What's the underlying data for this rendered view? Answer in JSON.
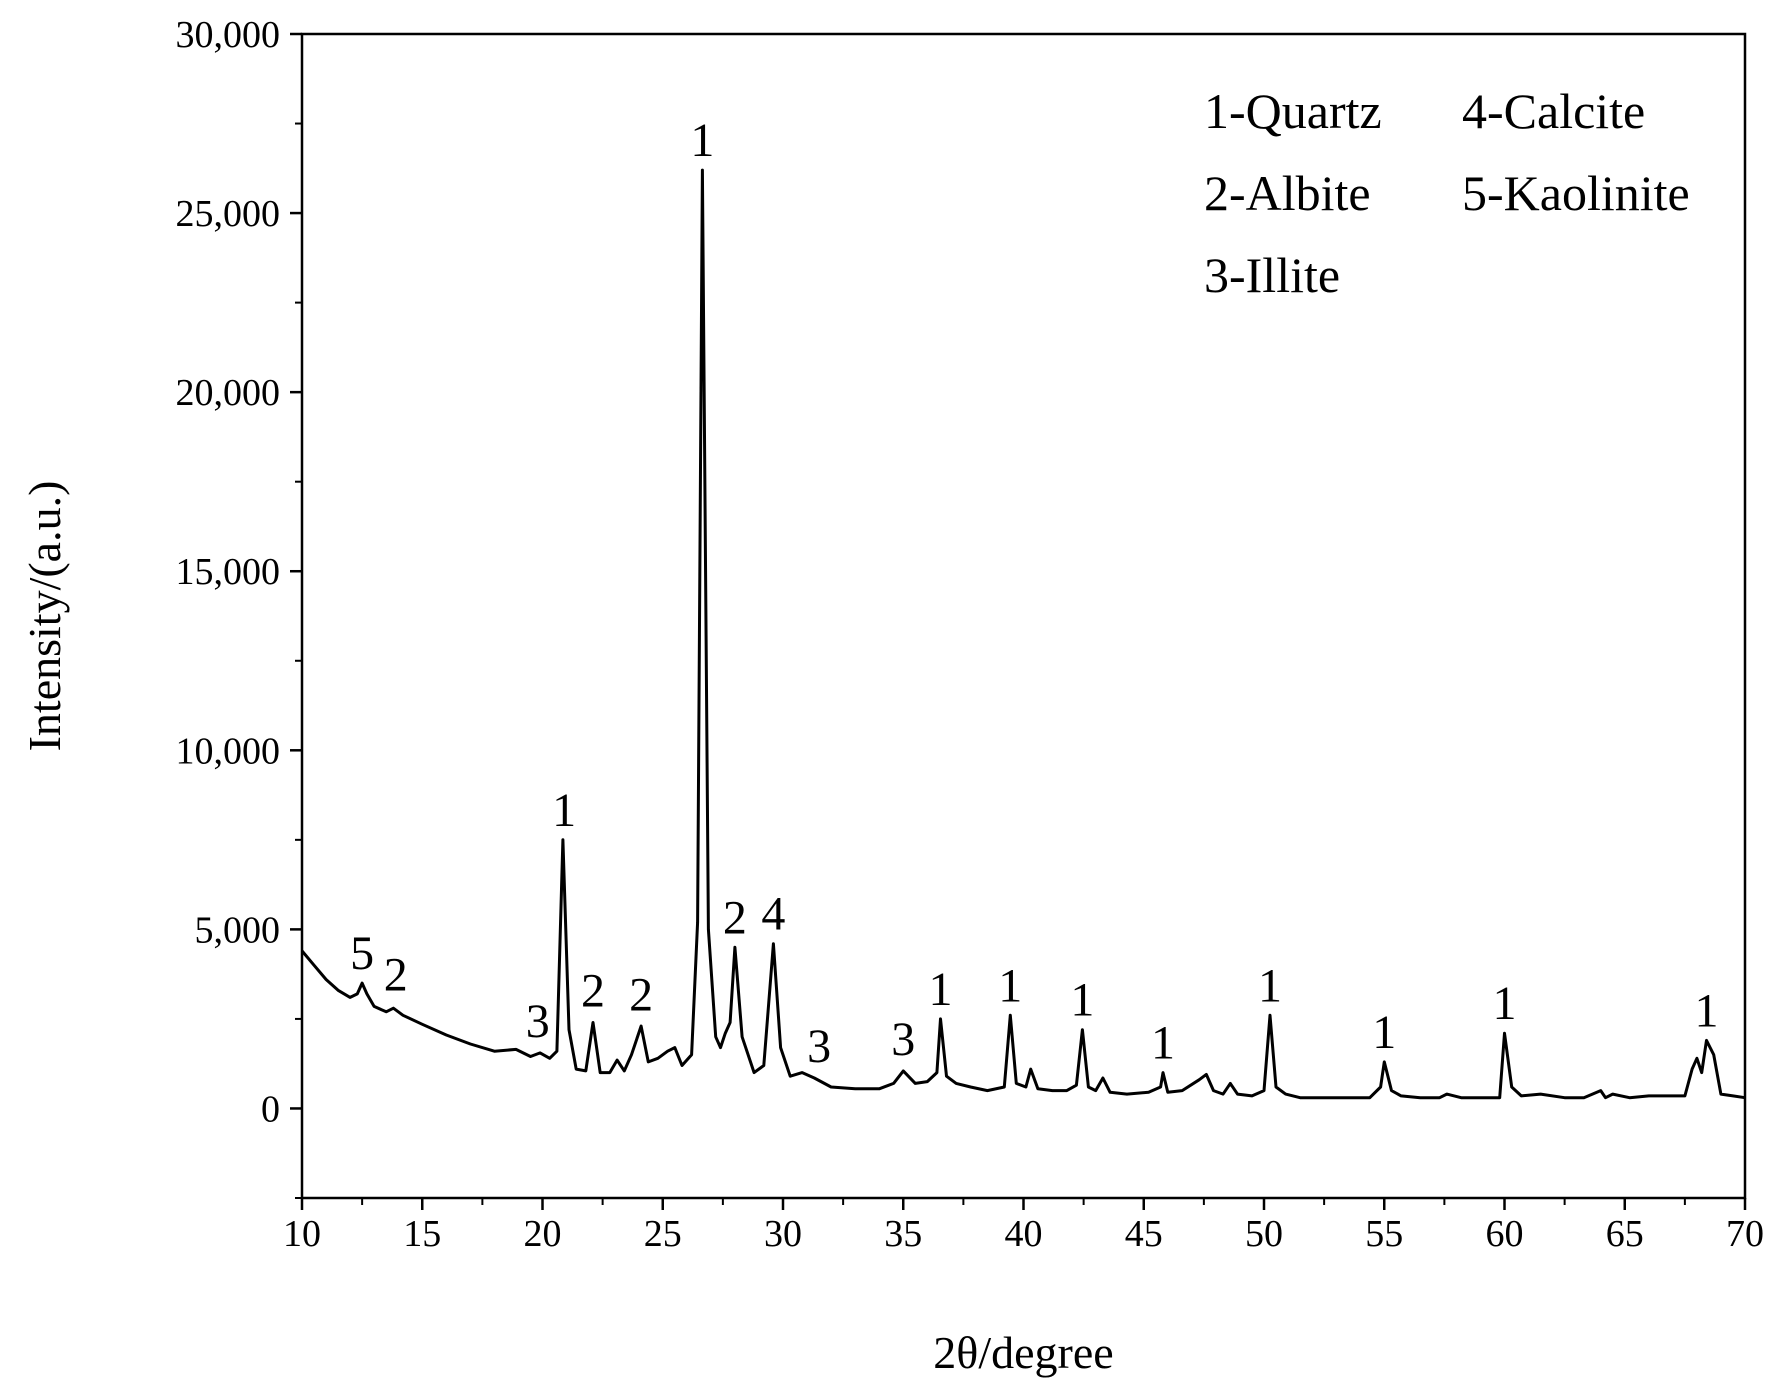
{
  "chart_data": {
    "type": "line",
    "title": "",
    "xlabel": "2θ/degree",
    "ylabel": "Intensity/(a.u.)",
    "xlim": [
      10,
      70
    ],
    "ylim": [
      -2500,
      30000
    ],
    "x_ticks": [
      10,
      15,
      20,
      25,
      30,
      35,
      40,
      45,
      50,
      55,
      60,
      65,
      70
    ],
    "x_tick_labels": [
      "10",
      "15",
      "20",
      "25",
      "30",
      "35",
      "40",
      "45",
      "50",
      "55",
      "60",
      "65",
      "70"
    ],
    "y_ticks": [
      0,
      5000,
      10000,
      15000,
      20000,
      25000,
      30000
    ],
    "y_tick_labels": [
      "0",
      "5,000",
      "10,000",
      "15,000",
      "20,000",
      "25,000",
      "30,000"
    ],
    "grid": false,
    "legend_position": "top-right",
    "legend": [
      "1-Quartz",
      "4-Calcite",
      "2-Albite",
      "5-Kaolinite",
      "3-Illite"
    ],
    "series": [
      {
        "color": "#000000",
        "x": [
          10,
          10.5,
          11,
          11.5,
          12,
          12.3,
          12.5,
          12.7,
          13,
          13.5,
          13.8,
          14.2,
          15,
          16,
          17,
          18,
          18.9,
          19.5,
          19.9,
          20.3,
          20.6,
          20.85,
          21.1,
          21.4,
          21.8,
          22.1,
          22.4,
          22.8,
          23.1,
          23.4,
          23.7,
          24.1,
          24.4,
          24.8,
          25.2,
          25.5,
          25.8,
          26.2,
          26.45,
          26.65,
          26.9,
          27.2,
          27.4,
          27.6,
          27.8,
          28.0,
          28.3,
          28.8,
          29.2,
          29.6,
          29.9,
          30.3,
          30.8,
          31.3,
          32,
          33,
          34,
          34.6,
          35.0,
          35.5,
          36.0,
          36.4,
          36.55,
          36.8,
          37.2,
          37.8,
          38.5,
          39.2,
          39.45,
          39.7,
          40.1,
          40.3,
          40.6,
          41.2,
          41.8,
          42.2,
          42.45,
          42.7,
          43.0,
          43.3,
          43.6,
          44.3,
          45.2,
          45.7,
          45.8,
          46.0,
          46.6,
          47.3,
          47.6,
          47.9,
          48.3,
          48.6,
          48.9,
          49.5,
          50.0,
          50.25,
          50.5,
          50.9,
          51.5,
          52.5,
          53.5,
          54.4,
          54.85,
          55.0,
          55.3,
          55.7,
          56.5,
          57.3,
          57.6,
          58.2,
          59.0,
          59.8,
          60.0,
          60.3,
          60.7,
          61.5,
          62.5,
          63.3,
          64.0,
          64.2,
          64.5,
          65.2,
          66.0,
          66.8,
          67.5,
          67.8,
          68.0,
          68.2,
          68.4,
          68.7,
          69.0,
          69.5,
          70
        ],
        "values": [
          4400,
          4000,
          3600,
          3300,
          3100,
          3200,
          3500,
          3200,
          2850,
          2700,
          2800,
          2600,
          2350,
          2050,
          1800,
          1600,
          1650,
          1450,
          1550,
          1400,
          1600,
          7500,
          2200,
          1100,
          1050,
          2400,
          1000,
          1000,
          1350,
          1050,
          1500,
          2300,
          1300,
          1400,
          1600,
          1700,
          1200,
          1500,
          5200,
          26200,
          5000,
          2000,
          1700,
          2100,
          2400,
          4500,
          2000,
          1000,
          1200,
          4600,
          1700,
          900,
          1000,
          850,
          600,
          550,
          550,
          700,
          1050,
          700,
          750,
          1000,
          2500,
          900,
          700,
          600,
          500,
          600,
          2600,
          700,
          600,
          1100,
          550,
          500,
          500,
          650,
          2200,
          600,
          500,
          850,
          450,
          400,
          450,
          600,
          1000,
          450,
          500,
          800,
          950,
          500,
          400,
          700,
          400,
          350,
          500,
          2600,
          600,
          400,
          300,
          300,
          300,
          300,
          600,
          1300,
          500,
          350,
          300,
          300,
          400,
          300,
          300,
          300,
          2100,
          600,
          350,
          400,
          300,
          300,
          500,
          300,
          400,
          300,
          350,
          350,
          350,
          1100,
          1400,
          1000,
          1900,
          1500,
          400,
          350,
          300
        ]
      }
    ],
    "annotations": [
      {
        "text": "5",
        "x": 12.5,
        "y": 3500
      },
      {
        "text": "2",
        "x": 13.9,
        "y": 2900
      },
      {
        "text": "3",
        "x": 19.8,
        "y": 1600
      },
      {
        "text": "1",
        "x": 20.9,
        "y": 7500
      },
      {
        "text": "2",
        "x": 22.1,
        "y": 2450
      },
      {
        "text": "2",
        "x": 24.1,
        "y": 2350
      },
      {
        "text": "1",
        "x": 26.65,
        "y": 26200
      },
      {
        "text": "2",
        "x": 28.0,
        "y": 4500
      },
      {
        "text": "4",
        "x": 29.6,
        "y": 4600
      },
      {
        "text": "3",
        "x": 31.5,
        "y": 900
      },
      {
        "text": "3",
        "x": 35.0,
        "y": 1100
      },
      {
        "text": "1",
        "x": 36.55,
        "y": 2500
      },
      {
        "text": "1",
        "x": 39.45,
        "y": 2600
      },
      {
        "text": "1",
        "x": 42.45,
        "y": 2200
      },
      {
        "text": "1",
        "x": 45.8,
        "y": 1000
      },
      {
        "text": "1",
        "x": 50.25,
        "y": 2600
      },
      {
        "text": "1",
        "x": 55.0,
        "y": 1300
      },
      {
        "text": "1",
        "x": 60.0,
        "y": 2100
      },
      {
        "text": "1",
        "x": 68.4,
        "y": 1900
      }
    ]
  }
}
